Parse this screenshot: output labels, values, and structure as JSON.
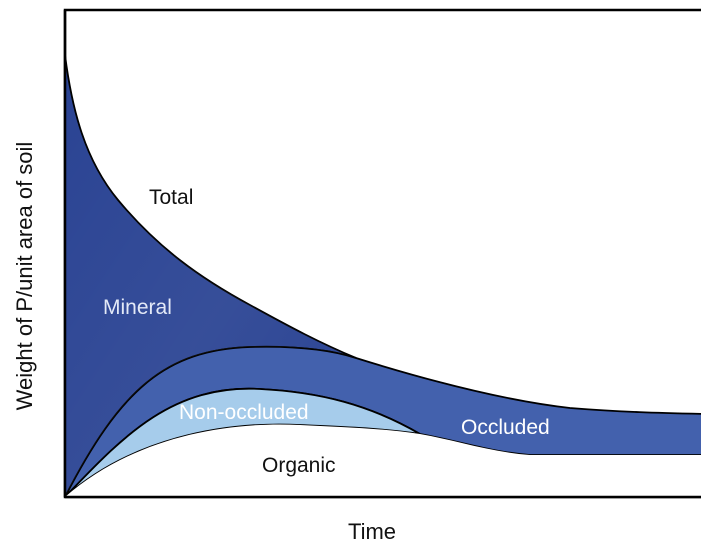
{
  "axes": {
    "x_label": "Time",
    "y_label": "Weight of P/unit area of soil"
  },
  "regions": [
    {
      "key": "total",
      "label": "Total",
      "label_color": "#111111"
    },
    {
      "key": "mineral",
      "label": "Mineral",
      "fill": "#2a4393",
      "label_color": "#e3e9f7"
    },
    {
      "key": "occluded",
      "label": "Occluded",
      "fill": "#4361ad",
      "label_color": "#ffffff"
    },
    {
      "key": "non_occluded",
      "label": "Non-occluded",
      "fill": "#a6cceb",
      "label_color": "#ffffff"
    },
    {
      "key": "organic",
      "label": "Organic",
      "fill": "#ffffff",
      "label_color": "#111111"
    }
  ],
  "colors": {
    "outline": "#000000",
    "axis": "#000000",
    "background": "#ffffff"
  }
}
